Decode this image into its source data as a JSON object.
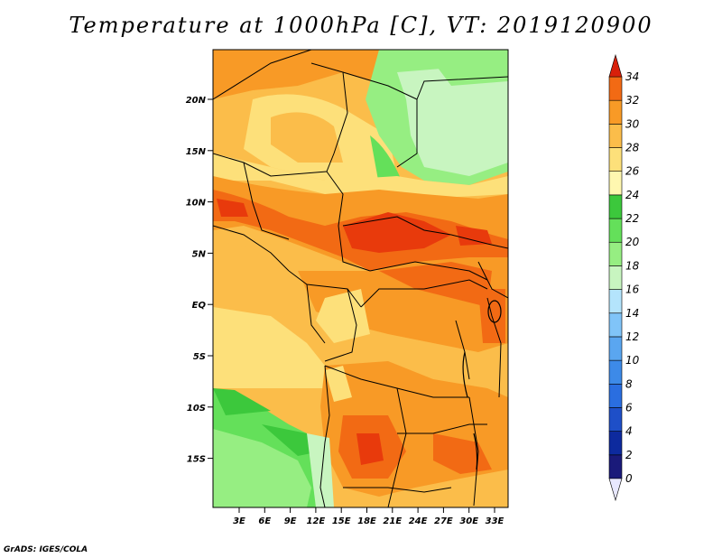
{
  "title": "Temperature at 1000hPa [C], VT: 2019120900",
  "credit": "GrADS: IGES/COLA",
  "map": {
    "lat_ticks": [
      "20N",
      "15N",
      "10N",
      "5N",
      "EQ",
      "5S",
      "10S",
      "15S"
    ],
    "lon_ticks": [
      "3E",
      "6E",
      "9E",
      "12E",
      "15E",
      "18E",
      "21E",
      "24E",
      "27E",
      "30E",
      "33E"
    ]
  },
  "colorbar": {
    "labels": [
      "0",
      "2",
      "4",
      "6",
      "8",
      "10",
      "12",
      "14",
      "16",
      "18",
      "20",
      "22",
      "24",
      "26",
      "28",
      "30",
      "32",
      "34"
    ],
    "colors": [
      "#1a1a7a",
      "#0d2a9e",
      "#1e4fc8",
      "#2a6ee0",
      "#3d8ae8",
      "#5aa6f0",
      "#80c4f8",
      "#b4e4fc",
      "#c8f5c0",
      "#96ee82",
      "#64e05a",
      "#3cc83c",
      "#fff7b0",
      "#fde07a",
      "#fbbd4a",
      "#f89a26",
      "#f26a14",
      "#e83a0c"
    ],
    "under_color": "#e8e8ff",
    "over_color": "#d8200a"
  }
}
